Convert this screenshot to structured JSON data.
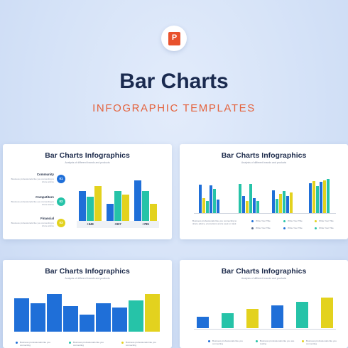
{
  "header": {
    "icon_letter": "P",
    "title": "Bar Charts",
    "subtitle": "INFOGRAPHIC TEMPLATES"
  },
  "colors": {
    "blue": "#1f6fd8",
    "cyan": "#26c3a8",
    "yellow": "#e3d21e",
    "accent": "#e4623c",
    "navy": "#1a2a4f"
  },
  "slides": {
    "s1": {
      "title": "Bar Charts Infographics",
      "subtitle": "Analysis of different brands and products",
      "rows": [
        {
          "label": "Community",
          "desc": "Business professionals like you connecting to share advice",
          "badge": "01"
        },
        {
          "label": "Competitors",
          "desc": "Business professionals like you connecting to share advice",
          "badge": "02"
        },
        {
          "label": "Financial",
          "desc": "Business professionals like you connecting to share advice",
          "badge": "03"
        }
      ],
      "totals": [
        "+549",
        "+937",
        "+795"
      ]
    },
    "s2": {
      "title": "Bar Charts Infographics",
      "subtitle": "Analysis of different brands and products",
      "desc": "Business professionals like you connecting to share advice, promotions and a seek on task",
      "legend": [
        "Write Your Title",
        "Write Your Title",
        "Write Your Title",
        "Write Your Title",
        "Write Your Title",
        "Write Your Title"
      ]
    },
    "s3": {
      "title": "Bar Charts Infographics",
      "subtitle": "Analysis of different brands and products",
      "legend": [
        "Business professionals like you connecting",
        "Business professionals like you connecting",
        "Business professionals like you connecting"
      ]
    },
    "s4": {
      "title": "Bar Charts Infographics",
      "subtitle": "Analysis of different brands and products",
      "legend": [
        "Business professionals like you connecting",
        "Business professionals like you are testing",
        "Business professionals like you connecting"
      ]
    }
  }
}
